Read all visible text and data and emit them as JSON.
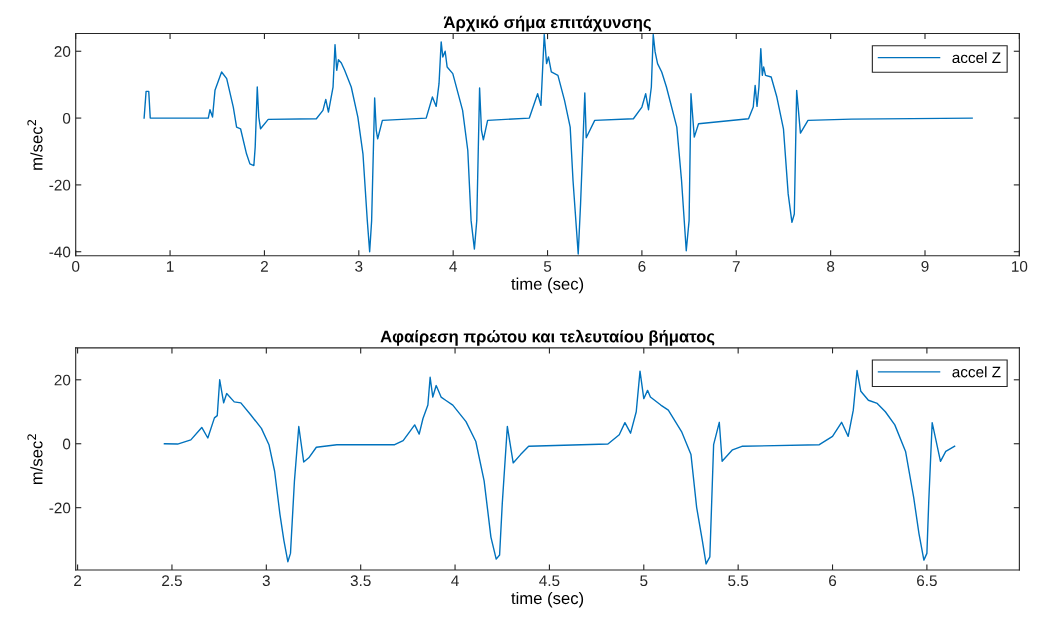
{
  "chart_data": [
    {
      "type": "line",
      "title": "Άρχικό σήμα επιτάχυνσης",
      "xlabel": "time (sec)",
      "ylabel": "m/sec$^{2}$",
      "xlim": [
        0,
        10
      ],
      "xticks": [
        0,
        1,
        2,
        3,
        4,
        5,
        6,
        7,
        8,
        9,
        10
      ],
      "ylim": [
        -41.2,
        25.3
      ],
      "yticks": [
        -40,
        -20,
        0,
        20
      ],
      "grid": false,
      "legend": "top right",
      "line_style": "solid",
      "marker": "none",
      "series": [
        {
          "name": "accel Z",
          "color": "#0072bd",
          "x": [
            0.725,
            0.746,
            0.774,
            0.79,
            1.405,
            1.423,
            1.45,
            1.476,
            1.546,
            1.6,
            1.67,
            1.705,
            1.747,
            1.81,
            1.846,
            1.888,
            1.902,
            1.924,
            1.94,
            1.959,
            2.04,
            2.55,
            2.62,
            2.65,
            2.678,
            2.727,
            2.748,
            2.766,
            2.784,
            2.815,
            2.85,
            2.92,
            2.99,
            3.044,
            3.09,
            3.115,
            3.136,
            3.168,
            3.185,
            3.2,
            3.25,
            3.714,
            3.78,
            3.82,
            3.85,
            3.873,
            3.89,
            3.915,
            3.936,
            3.996,
            4.1,
            4.155,
            4.19,
            4.225,
            4.25,
            4.28,
            4.3,
            4.32,
            4.365,
            4.807,
            4.895,
            4.93,
            4.965,
            4.99,
            5.01,
            5.04,
            5.11,
            5.18,
            5.24,
            5.27,
            5.325,
            5.35,
            5.395,
            5.41,
            5.5,
            5.91,
            6.0,
            6.04,
            6.07,
            6.1,
            6.12,
            6.14,
            6.166,
            6.21,
            6.26,
            6.37,
            6.42,
            6.47,
            6.5,
            6.52,
            6.555,
            6.6,
            7.13,
            7.18,
            7.2,
            7.22,
            7.24,
            7.26,
            7.276,
            7.29,
            7.31,
            7.37,
            7.43,
            7.5,
            7.55,
            7.59,
            7.615,
            7.64,
            7.68,
            7.76,
            8.22,
            9.5
          ],
          "values": [
            0,
            8,
            8,
            0,
            0,
            2.5,
            0.3,
            8.3,
            13.8,
            11.8,
            3.3,
            -2.7,
            -3.2,
            -10.7,
            -13.7,
            -14.2,
            -8.7,
            9.3,
            0.3,
            -3.2,
            -0.4,
            -0.2,
            2.3,
            5.6,
            1.8,
            9.3,
            22,
            14.3,
            17.5,
            16.5,
            14.3,
            9.3,
            0.3,
            -10.7,
            -30.7,
            -40,
            -30.7,
            6,
            -3.7,
            -6.2,
            -0.7,
            0,
            6.3,
            3.5,
            10.3,
            22.8,
            18.3,
            20,
            15.3,
            13.3,
            2.3,
            -9.7,
            -30.7,
            -39.2,
            -30.7,
            9,
            -3.7,
            -6.5,
            -0.7,
            0,
            7.3,
            3.8,
            25,
            16.3,
            18.3,
            13.8,
            12.8,
            5.3,
            -2.7,
            -18.7,
            -40.7,
            -25.7,
            7.5,
            -5.9,
            -0.7,
            -0.2,
            3.3,
            7.3,
            2.5,
            9.3,
            25,
            19.8,
            16.3,
            13.8,
            9.3,
            -2.7,
            -18.7,
            -39.7,
            -30.7,
            7.3,
            -5.7,
            -1.7,
            -0.2,
            3.3,
            9.8,
            3.5,
            9.3,
            20.8,
            12.8,
            15.3,
            12.8,
            12.3,
            6.3,
            -3.2,
            -22.7,
            -31.2,
            -28.7,
            8.3,
            -4.5,
            -0.7,
            -0.3,
            0
          ]
        }
      ]
    },
    {
      "type": "line",
      "title": "Αφαίρεση πρώτου και τελευταίου βήματος",
      "xlabel": "time (sec)",
      "ylabel": "m/sec$^{2}$",
      "xlim": [
        1.99,
        6.99
      ],
      "xticks": [
        2,
        2.5,
        3,
        3.5,
        4,
        4.5,
        5,
        5.5,
        6,
        6.5
      ],
      "ylim": [
        -39.5,
        30
      ],
      "yticks": [
        -20,
        0,
        20
      ],
      "grid": false,
      "legend": "top right",
      "line_style": "solid",
      "marker": "none",
      "series": [
        {
          "name": "accel Z",
          "color": "#0072bd",
          "x": [
            2.46,
            2.53,
            2.6,
            2.658,
            2.69,
            2.725,
            2.74,
            2.753,
            2.774,
            2.79,
            2.83,
            2.865,
            2.918,
            2.974,
            3.014,
            3.044,
            3.072,
            3.093,
            3.114,
            3.128,
            3.149,
            3.172,
            3.198,
            3.225,
            3.265,
            3.374,
            3.68,
            3.725,
            3.76,
            3.786,
            3.81,
            3.83,
            3.856,
            3.868,
            3.882,
            3.9,
            3.926,
            3.95,
            3.988,
            4.058,
            4.11,
            4.154,
            4.19,
            4.218,
            4.236,
            4.25,
            4.277,
            4.308,
            4.347,
            4.39,
            4.81,
            4.87,
            4.9,
            4.93,
            4.96,
            4.98,
            5.0,
            5.02,
            5.035,
            5.09,
            5.13,
            5.2,
            5.25,
            5.28,
            5.31,
            5.33,
            5.35,
            5.37,
            5.4,
            5.415,
            5.47,
            5.52,
            5.93,
            6.0,
            6.048,
            6.083,
            6.11,
            6.13,
            6.15,
            6.19,
            6.237,
            6.28,
            6.33,
            6.387,
            6.43,
            6.458,
            6.484,
            6.5,
            6.51,
            6.528,
            6.572,
            6.6,
            6.647
          ],
          "values": [
            0,
            -0.1,
            1.2,
            5.1,
            1.8,
            8.1,
            8.8,
            20,
            12.8,
            15.7,
            13.1,
            12.8,
            9,
            4.8,
            -0.3,
            -8.6,
            -22,
            -30.2,
            -36.9,
            -34.3,
            -11.6,
            5.4,
            -5.7,
            -4.4,
            -1.1,
            -0.3,
            -0.3,
            1,
            3.8,
            5.9,
            3,
            7.9,
            12.1,
            20.8,
            14.6,
            18.2,
            14.6,
            13.6,
            12.1,
            6.9,
            0.7,
            -11.6,
            -29.2,
            -36.1,
            -34.8,
            -18.9,
            5.4,
            -6,
            -3.4,
            -0.8,
            -0.1,
            2.8,
            6.6,
            3.3,
            10,
            22.7,
            14.1,
            16.7,
            14.6,
            12.1,
            10.5,
            3.8,
            -3.4,
            -19.9,
            -30.2,
            -37.6,
            -35.4,
            -0.3,
            6.7,
            -5.5,
            -1.9,
            -0.8,
            -0.3,
            2.3,
            6.7,
            2.3,
            10.5,
            22.9,
            16.4,
            13.6,
            12.6,
            10,
            5.9,
            -2.4,
            -16.8,
            -28.1,
            -36.4,
            -34.3,
            -17.9,
            6.6,
            -5.5,
            -2.4,
            -0.8
          ]
        }
      ]
    }
  ]
}
